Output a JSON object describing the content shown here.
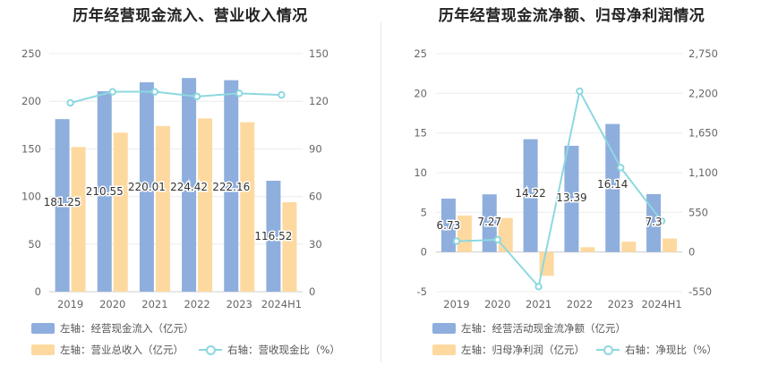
{
  "colors": {
    "bar_primary": "#8eaedd",
    "bar_secondary": "#fdd9a0",
    "line": "#8dd8e0",
    "grid": "#ececec",
    "axis_text": "#666666"
  },
  "left_title": "历年经营现金流入、营业收入情况",
  "right_title": "历年经营现金流净额、归母净利润情况",
  "legend": {
    "left": [
      "左轴：经营现金流入（亿元）",
      "左轴：营业总收入（亿元）",
      "右轴：营收现金比（%）"
    ],
    "right": [
      "左轴：经营活动现金流净额（亿元）",
      "左轴：归母净利润（亿元）",
      "右轴：净现比（%）"
    ]
  },
  "chart_data": [
    {
      "type": "bar",
      "title": "历年经营现金流入、营业收入情况",
      "categories": [
        "2019",
        "2020",
        "2021",
        "2022",
        "2023",
        "2024H1"
      ],
      "series": [
        {
          "name": "左轴：经营现金流入（亿元）",
          "axis": "left",
          "values": [
            181.25,
            210.55,
            220.01,
            224.42,
            222.16,
            116.52
          ],
          "labels": [
            "181.25",
            "210.55",
            "220.01",
            "224.42",
            "222.16",
            "116.52"
          ]
        },
        {
          "name": "左轴：营业总收入（亿元）",
          "axis": "left",
          "values": [
            152,
            167,
            174,
            182,
            178,
            94
          ]
        },
        {
          "name": "右轴：营收现金比（%）",
          "axis": "right",
          "type": "line",
          "values": [
            119,
            126,
            126,
            123,
            125,
            124
          ]
        }
      ],
      "left_axis": {
        "ylim": [
          0,
          250
        ],
        "ticks": [
          "0",
          "50",
          "100",
          "150",
          "200",
          "250"
        ]
      },
      "right_axis": {
        "ylim": [
          0,
          150
        ],
        "ticks": [
          "0",
          "30",
          "60",
          "90",
          "120",
          "150"
        ]
      },
      "grid": true
    },
    {
      "type": "bar",
      "title": "历年经营现金流净额、归母净利润情况",
      "categories": [
        "2019",
        "2020",
        "2021",
        "2022",
        "2023",
        "2024H1"
      ],
      "series": [
        {
          "name": "左轴：经营活动现金流净额（亿元）",
          "axis": "left",
          "values": [
            6.73,
            7.27,
            14.22,
            13.39,
            16.14,
            7.3
          ],
          "labels": [
            "6.73",
            "7.27",
            "14.22",
            "13.39",
            "16.14",
            "7.3"
          ]
        },
        {
          "name": "左轴：归母净利润（亿元）",
          "axis": "left",
          "values": [
            4.6,
            4.3,
            -3.0,
            0.6,
            1.3,
            1.7
          ]
        },
        {
          "name": "右轴：净现比（%）",
          "axis": "right",
          "type": "line",
          "values": [
            150,
            170,
            -480,
            2230,
            1170,
            430
          ]
        }
      ],
      "left_axis": {
        "ylim": [
          -5,
          25
        ],
        "ticks": [
          "-5",
          "0",
          "5",
          "10",
          "15",
          "20",
          "25"
        ]
      },
      "right_axis": {
        "ylim": [
          -550,
          2750
        ],
        "ticks": [
          "-550",
          "0",
          "550",
          "1,100",
          "1,650",
          "2,200",
          "2,750"
        ]
      },
      "grid": true
    }
  ]
}
